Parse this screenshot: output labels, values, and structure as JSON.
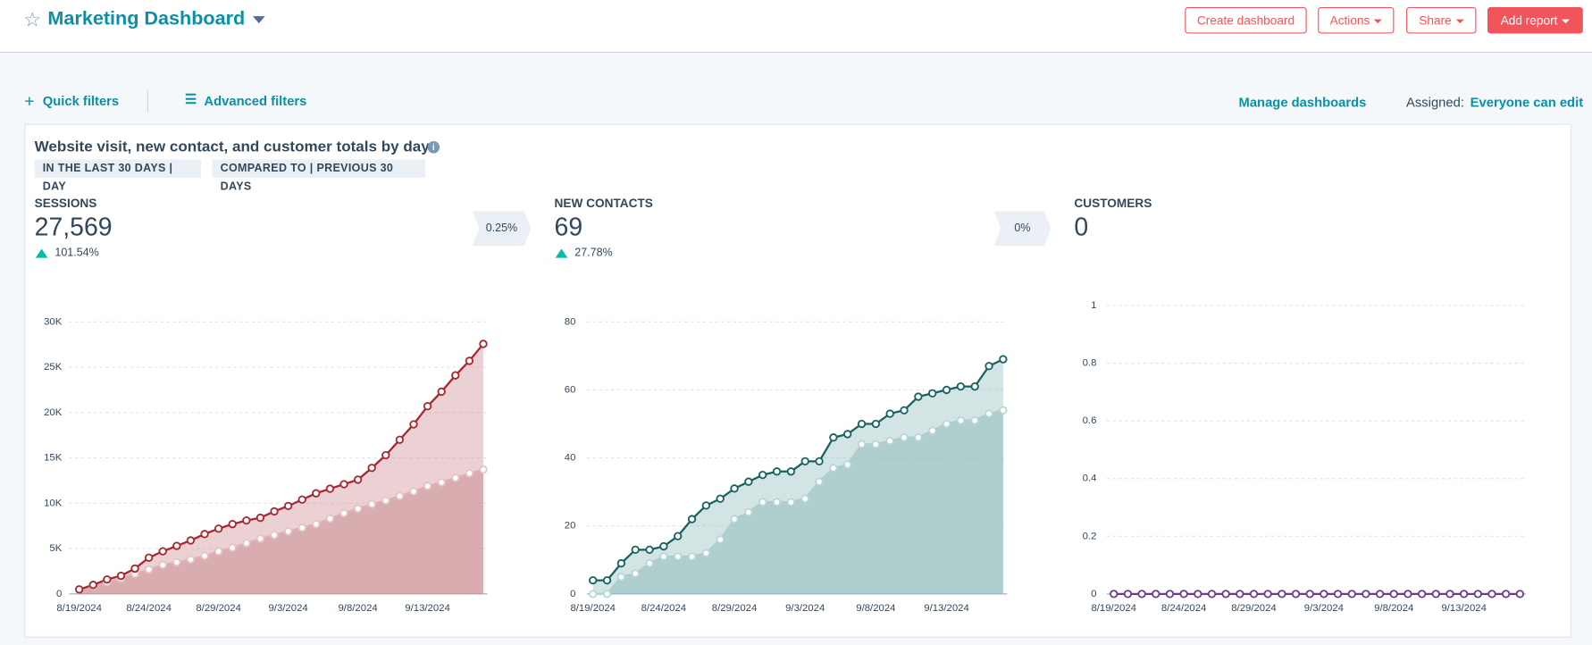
{
  "header": {
    "title": "Marketing Dashboard",
    "buttons": [
      "Create dashboard",
      "Actions",
      "Share",
      "Add report"
    ]
  },
  "filters": {
    "quick": "Quick filters",
    "advanced": "Advanced filters",
    "manage": "Manage dashboards",
    "assigned_label": "Assigned:",
    "assigned_value": "Everyone can edit"
  },
  "card": {
    "title": "Website visit, new contact, and customer totals by day",
    "tags": [
      "IN THE LAST 30 DAYS | DAY",
      "COMPARED TO | PREVIOUS 30 DAYS"
    ],
    "kpis": [
      {
        "label": "SESSIONS",
        "value": "27,569",
        "change": "101.54%"
      },
      {
        "label": "NEW CONTACTS",
        "value": "69",
        "change": "27.78%"
      },
      {
        "label": "CUSTOMERS",
        "value": "0"
      }
    ],
    "conversions": [
      "0.25%",
      "0%"
    ]
  },
  "chart_data": [
    {
      "type": "line",
      "categories": [
        "8/19/2024",
        null,
        null,
        null,
        null,
        "8/24/2024",
        null,
        null,
        null,
        null,
        "8/29/2024",
        null,
        null,
        null,
        null,
        "9/3/2024",
        null,
        null,
        null,
        null,
        "9/8/2024",
        null,
        null,
        null,
        null,
        "9/13/2024",
        null,
        null,
        null,
        null
      ],
      "series": [
        {
          "color": "#e6c3c4",
          "fill": "#b86e72",
          "values": [
            500,
            900,
            1300,
            1700,
            2200,
            2700,
            3200,
            3500,
            3800,
            4200,
            4700,
            5100,
            5600,
            6100,
            6500,
            6900,
            7300,
            7700,
            8300,
            8900,
            9400,
            9900,
            10300,
            10800,
            11300,
            11900,
            12300,
            12800,
            13300,
            13700
          ]
        },
        {
          "color": "#a8262e",
          "fill": "#d39a9d",
          "values": [
            500,
            1000,
            1600,
            2000,
            2800,
            4000,
            4700,
            5300,
            5900,
            6600,
            7200,
            7700,
            8100,
            8400,
            9100,
            9700,
            10400,
            11100,
            11600,
            12100,
            12600,
            13900,
            15300,
            17000,
            18700,
            20700,
            22300,
            24100,
            25700,
            27569
          ]
        }
      ],
      "ylim": [
        0,
        30000
      ],
      "yticks": [
        0,
        {
          "value": 5000,
          "label": "5K"
        },
        {
          "value": 10000,
          "label": "10K"
        },
        {
          "value": 15000,
          "label": "15K"
        },
        {
          "value": 20000,
          "label": "20K"
        },
        {
          "value": 25000,
          "label": "25K"
        },
        {
          "value": 30000,
          "label": "30K"
        }
      ],
      "grid": true
    },
    {
      "type": "line",
      "categories": [
        "8/19/2024",
        null,
        null,
        null,
        null,
        "8/24/2024",
        null,
        null,
        null,
        null,
        "8/29/2024",
        null,
        null,
        null,
        null,
        "9/3/2024",
        null,
        null,
        null,
        null,
        "9/8/2024",
        null,
        null,
        null,
        null,
        "9/13/2024",
        null,
        null,
        null,
        null
      ],
      "series": [
        {
          "color": "#b9d6d5",
          "fill": "#6fa8a6",
          "values": [
            0,
            0,
            5,
            6,
            9,
            11,
            11,
            11,
            12,
            16,
            22,
            24,
            27,
            27,
            27,
            28,
            33,
            37,
            38,
            44,
            44,
            45,
            46,
            46,
            48,
            50,
            51,
            51,
            53,
            54
          ]
        },
        {
          "color": "#17625f",
          "fill": "#9cc5c3",
          "values": [
            4,
            4,
            9,
            13,
            13,
            14,
            17,
            22,
            26,
            28,
            31,
            33,
            35,
            36,
            36,
            39,
            39,
            46,
            47,
            50,
            50,
            53,
            54,
            58,
            59,
            60,
            61,
            61,
            67,
            69
          ]
        }
      ],
      "ylim": [
        0,
        80
      ],
      "yticks": [
        0,
        20,
        40,
        60,
        80
      ],
      "grid": true
    },
    {
      "type": "line",
      "categories": [
        "8/19/2024",
        null,
        null,
        null,
        null,
        "8/24/2024",
        null,
        null,
        null,
        null,
        "8/29/2024",
        null,
        null,
        null,
        null,
        "9/3/2024",
        null,
        null,
        null,
        null,
        "9/8/2024",
        null,
        null,
        null,
        null,
        "9/13/2024",
        null,
        null,
        null,
        null
      ],
      "series": [
        {
          "color": "#6a3d8c",
          "fill": "#b9a3cc",
          "values": [
            0,
            0,
            0,
            0,
            0,
            0,
            0,
            0,
            0,
            0,
            0,
            0,
            0,
            0,
            0,
            0,
            0,
            0,
            0,
            0,
            0,
            0,
            0,
            0,
            0,
            0,
            0,
            0,
            0,
            0
          ]
        }
      ],
      "ylim": [
        0,
        1
      ],
      "yticks": [
        0,
        0.2,
        0.4,
        0.6,
        0.8,
        1
      ],
      "grid": true
    }
  ]
}
